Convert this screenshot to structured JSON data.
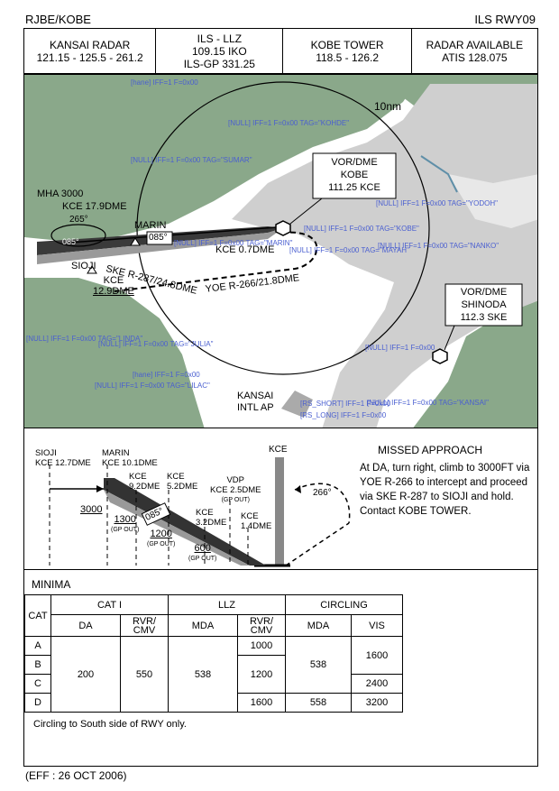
{
  "header": {
    "left": "RJBE/KOBE",
    "right": "ILS RWY09"
  },
  "freq": {
    "radar": {
      "title": "KANSAI RADAR",
      "freq": "121.15 - 125.5 - 261.2"
    },
    "ils": {
      "line1": "ILS - LLZ",
      "line2": "109.15  IKO",
      "line3": "ILS-GP 331.25"
    },
    "tower": {
      "title": "KOBE TOWER",
      "freq": "118.5 - 126.2"
    },
    "atis": {
      "title": "RADAR AVAILABLE",
      "freq": "ATIS 128.075"
    }
  },
  "plan": {
    "ring_label": "10nm",
    "vor_kobe": {
      "line1": "VOR/DME",
      "line2": "KOBE",
      "line3": "111.25  KCE"
    },
    "vor_shinoda": {
      "line1": "VOR/DME",
      "line2": "SHINODA",
      "line3": "112.3  SKE"
    },
    "mha": "MHA 3000",
    "kce179": "KCE 17.9DME",
    "hold_course": "265°",
    "hold_course2": "085°",
    "marin": "MARIN",
    "course": "085°",
    "kce07": "KCE 0.7DME",
    "sioji": "SIOJI",
    "ske_radial": "SKE R-287/24.8DME",
    "yoe_radial": "YOE R-266/21.8DME",
    "kce129_a": "KCE",
    "kce129_b": "12.9DME",
    "kansai_a": "KANSAI",
    "kansai_b": "INTL AP",
    "overlay": {
      "hane": "[hane] IFF=1  F=0x00",
      "kohde": "[NULL] IFF=1  F=0x00  TAG=\"KOHDE\"",
      "sumar": "[NULL] IFF=1  F=0x00  TAG=\"SUMAR\"",
      "yodoh": "[NULL] IFF=1  F=0x00  TAG=\"YODOH\"",
      "kobe": "[NULL] IFF=1  F=0x00  TAG=\"KOBE\"",
      "mayah": "[NULL] IFF=1  F=0x00  TAG=\"MAYAH\"",
      "nanko": "[NULL] IFF=1  F=0x00  TAG=\"NANKO\"",
      "marin": "[NULL] IFF=1  F=0x00  TAG=\"MARIN\"",
      "linda": "[NULL] IFF=1  F=0x00  TAG=\"LINDA\"",
      "julia": "[NULL] IFF=1  F=0x00  TAG=\"JULIA\"",
      "lilac": "[NULL] IFF=1  F=0x00  TAG=\"LILAC\"",
      "hane2": "[hane] IFF=1  F=0x00",
      "kansai": "[NULL] IFF=1  F=0x00  TAG=\"KANSAI\"",
      "short": "[RS_SHORT] IFF=1  F=0x00",
      "long": "[RS_LONG] IFF=1  F=0x00",
      "generic": "[NULL] IFF=1  F=0x00"
    }
  },
  "profile": {
    "sioji_a": "SIOJI",
    "sioji_b": "KCE 12.7DME",
    "marin_a": "MARIN",
    "marin_b": "KCE 10.1DME",
    "kce92_a": "KCE",
    "kce92_b": "9.2DME",
    "kce52_a": "KCE",
    "kce52_b": "5.2DME",
    "vdp_a": "VDP",
    "vdp_b": "KCE 2.5DME",
    "vdp_c": "(GP OUT)",
    "kce32_a": "KCE",
    "kce32_b": "3.2DME",
    "kce14_a": "KCE",
    "kce14_b": "1.4DME",
    "kce_top": "KCE",
    "alt3000": "3000",
    "alt1300": "1300",
    "alt1300_gp": "(GP OUT)",
    "alt1200": "1200",
    "alt1200_gp": "(GP OUT)",
    "alt600": "600",
    "alt600_gp": "(GP OUT)",
    "course": "085°",
    "missed_course": "266°",
    "missed_title": "MISSED APPROACH",
    "missed_text": "At DA, turn right, climb to 3000FT via YOE R-266 to intercept and proceed via SKE R-287 to SIOJI and hold. Contact KOBE TOWER."
  },
  "minima": {
    "title": "MINIMA",
    "cat": "CAT",
    "cat1": "CAT  I",
    "llz": "LLZ",
    "circling": "CIRCLING",
    "da": "DA",
    "rvr_cmv": "RVR/ CMV",
    "mda": "MDA",
    "rvr_cmv2": "RVR/ CMV",
    "mda2": "MDA",
    "vis": "VIS",
    "cats": [
      "A",
      "B",
      "C",
      "D"
    ],
    "da_val": "200",
    "rvr_val": "550",
    "llz_mda": "538",
    "llz_rvr": [
      "1000",
      "1200",
      "1600"
    ],
    "circ_mda": [
      "538",
      "558"
    ],
    "circ_vis": [
      "1600",
      "2400",
      "3200"
    ],
    "note": "Circling to South side of RWY only."
  },
  "footer": {
    "eff": "(EFF : 26 OCT 2006)"
  }
}
